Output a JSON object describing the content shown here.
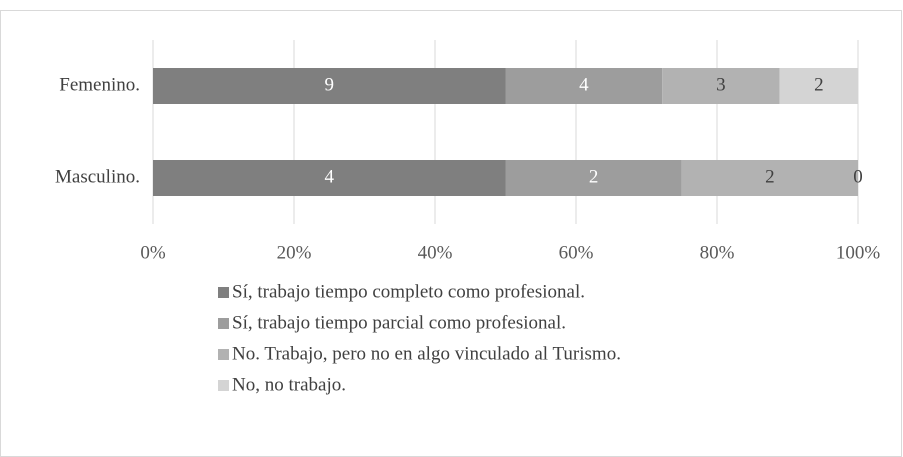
{
  "chart_data": {
    "type": "bar",
    "orientation": "horizontal",
    "stacking": "percent",
    "categories": [
      "Femenino.",
      "Masculino."
    ],
    "series": [
      {
        "name": "Sí, trabajo tiempo completo como profesional.",
        "color": "#7f7f7f",
        "values": [
          9,
          4
        ]
      },
      {
        "name": "Sí, trabajo tiempo parcial como profesional.",
        "color": "#9d9d9d",
        "values": [
          4,
          2
        ]
      },
      {
        "name": "No. Trabajo, pero no en algo vinculado al Turismo.",
        "color": "#b2b2b2",
        "values": [
          3,
          2
        ]
      },
      {
        "name": "No, no trabajo.",
        "color": "#d4d4d4",
        "values": [
          2,
          0
        ]
      }
    ],
    "xlim": [
      0,
      100
    ],
    "xticks": [
      {
        "value": 0,
        "label": "0%"
      },
      {
        "value": 20,
        "label": "20%"
      },
      {
        "value": 40,
        "label": "40%"
      },
      {
        "value": 60,
        "label": "60%"
      },
      {
        "value": 80,
        "label": "80%"
      },
      {
        "value": 100,
        "label": "100%"
      }
    ],
    "grid": true,
    "legend": "bottom"
  }
}
